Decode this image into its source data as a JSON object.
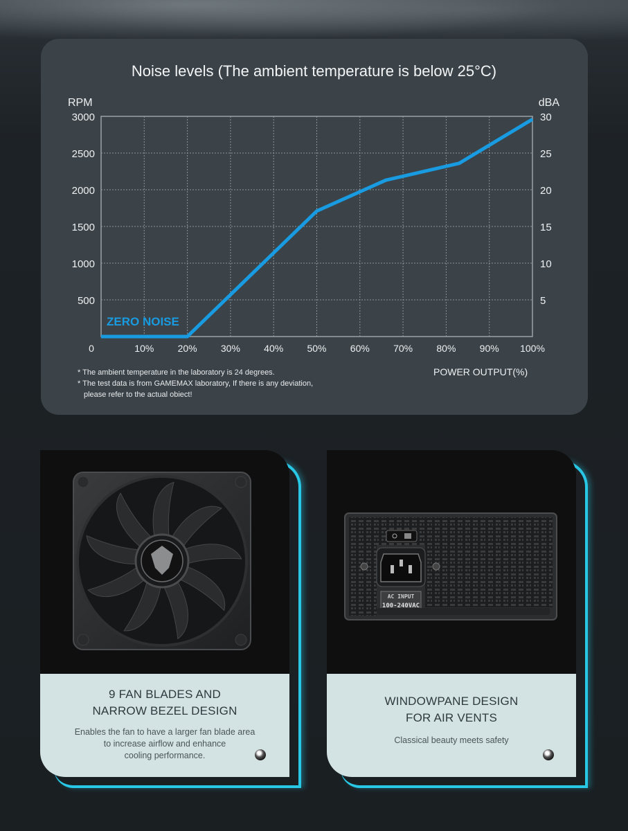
{
  "chart_data": {
    "type": "line",
    "title": "Noise levels (The ambient temperature is below 25°C)",
    "x_axis_title": "POWER OUTPUT(%)",
    "y_left_label": "RPM",
    "y_right_label": "dBA",
    "x_ticks": [
      "0",
      "10%",
      "20%",
      "30%",
      "40%",
      "50%",
      "60%",
      "70%",
      "80%",
      "90%",
      "100%"
    ],
    "y_left_ticks": [
      "500",
      "1000",
      "1500",
      "2000",
      "2500",
      "3000"
    ],
    "y_right_ticks": [
      "5",
      "10",
      "15",
      "20",
      "25",
      "30"
    ],
    "xlim": [
      0,
      100
    ],
    "ylim_rpm": [
      0,
      3000
    ],
    "ylim_dba": [
      0,
      30
    ],
    "grid": true,
    "series_color": "#189be0",
    "series": [
      {
        "x": [
          0,
          20,
          50,
          66,
          83,
          100
        ],
        "y": [
          0,
          0,
          1710,
          2130,
          2360,
          2960
        ]
      }
    ],
    "annotation": "ZERO NOISE"
  },
  "notes": [
    "* The ambient temperature in the laboratory is 24 degrees.",
    "* The test data is from GAMEMAX laboratory, If there is any deviation,",
    "please refer to the actual obiect!"
  ],
  "cards": [
    {
      "heading_line1": "9 FAN BLADES AND",
      "heading_line2": "NARROW BEZEL DESIGN",
      "desc_line1": "Enables the fan to have a larger fan blade area",
      "desc_line2": "to increase airflow and enhance",
      "desc_line3": "cooling performance."
    },
    {
      "heading_line1": "WINDOWPANE DESIGN",
      "heading_line2": "FOR AIR VENTS",
      "desc_line1": "Classical beauty meets safety",
      "ac_label_1": "AC INPUT",
      "ac_label_2": "100-240VAC"
    }
  ],
  "colors": {
    "accent": "#29c7e6",
    "line": "#189be0",
    "panel": "#3b4349",
    "card_text_bg": "#d3e3e3"
  }
}
